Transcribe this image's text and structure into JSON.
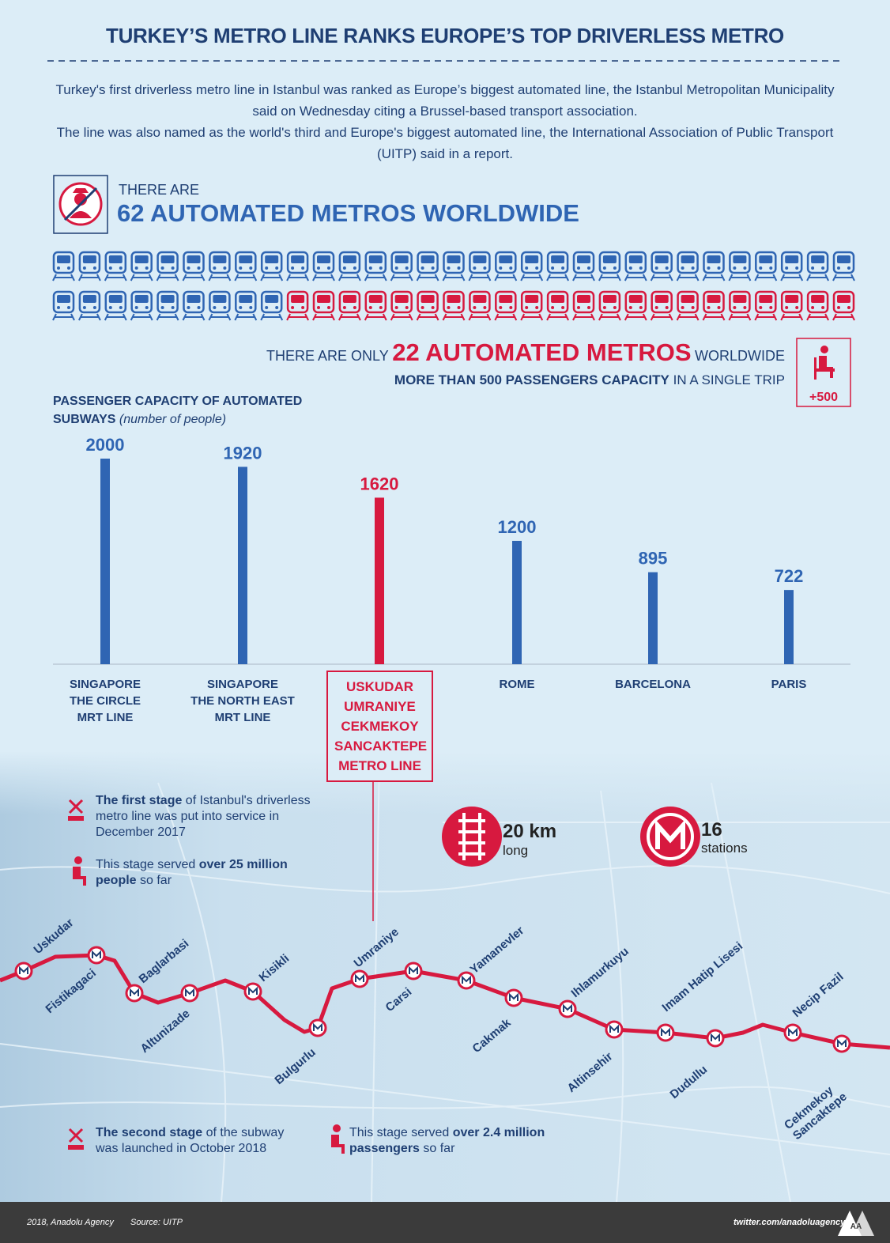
{
  "header": {
    "title": "TURKEY’S METRO LINE RANKS EUROPE’S TOP DRIVERLESS METRO",
    "intro": [
      "Turkey's first driverless metro line in Istanbul was ranked as Europe’s biggest automated line, the Istanbul Metropolitan Municipality said on Wednesday citing a Brussel-based transport association.",
      "The line was also named as the world's third and Europe's biggest automated line, the International Association of Public Transport (UITP) said in a report."
    ]
  },
  "automated": {
    "lead": "THERE ARE",
    "headline": "62 AUTOMATED METROS WORLDWIDE",
    "pictogram": {
      "total": 62,
      "highlighted": 22,
      "color": "#2f65b3",
      "highlight_color": "#d7193f"
    }
  },
  "capacity": {
    "lead": "THERE ARE ONLY",
    "headline": "22 AUTOMATED METROS",
    "tail": "WORLDWIDE",
    "line2_bold": "MORE THAN 500 PASSENGERS CAPACITY",
    "line2": "IN A SINGLE TRIP",
    "badge": "+500"
  },
  "chart_data": {
    "type": "bar",
    "title": "PASSENGER CAPACITY OF AUTOMATED SUBWAYS",
    "subtitle": "(number of people)",
    "categories": [
      "SINGAPORE\nTHE CIRCLE\nMRT LINE",
      "SINGAPORE\nTHE NORTH EAST\nMRT LINE",
      "USKUDAR\nUMRANIYE\nCEKMEKOY\nSANCAKTEPE\nMETRO LINE",
      "ROME",
      "BARCELONA",
      "PARIS"
    ],
    "values": [
      2000,
      1920,
      1620,
      1200,
      895,
      722
    ],
    "colors": [
      "#2f65b3",
      "#2f65b3",
      "#d7193f",
      "#2f65b3",
      "#2f65b3",
      "#2f65b3"
    ]
  },
  "map": {
    "first_stage": {
      "bold": "The first stage",
      "text": " of Istanbul's driverless metro line was put into service in December 2017"
    },
    "first_served": {
      "text": "This stage served ",
      "bold": "over 25 million people",
      "tail": " so far"
    },
    "length": {
      "value": "20 km",
      "label": "long"
    },
    "stations_count": {
      "value": "16",
      "label": "stations"
    },
    "stations": [
      "Uskudar",
      "Fistikagaci",
      "Baglarbasi",
      "Altunizade",
      "Kisikli",
      "Bulgurlu",
      "Umraniye",
      "Carsi",
      "Yamanevler",
      "Cakmak",
      "Ihlamurkuyu",
      "Altinsehir",
      "Imam Hatip Lisesi",
      "Dudullu",
      "Necip Fazil",
      "Cekmekoy\nSancaktepe"
    ],
    "second_stage": {
      "bold": "The second stage",
      "text": " of the subway was launched in October 2018"
    },
    "second_served": {
      "text": "This stage served ",
      "bold": "over 2.4 million passengers",
      "tail": " so far"
    }
  },
  "footer": {
    "credit": "2018, Anadolu Agency",
    "source": "Source: UITP",
    "twitter": "twitter.com/anadoluagency",
    "logo": "AA"
  }
}
